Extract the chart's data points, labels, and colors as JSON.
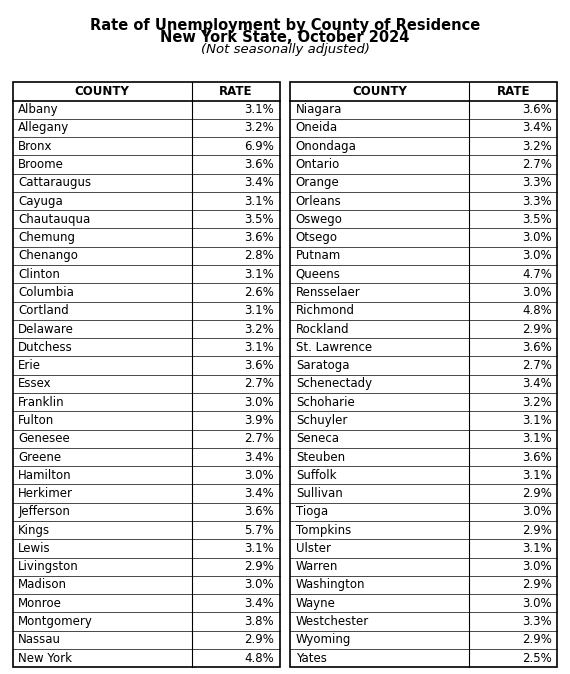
{
  "title_line1": "Rate of Unemployment by County of Residence",
  "title_line2": "New York State, October 2024",
  "title_line3": "(Not seasonally adjusted)",
  "left_counties": [
    "Albany",
    "Allegany",
    "Bronx",
    "Broome",
    "Cattaraugus",
    "Cayuga",
    "Chautauqua",
    "Chemung",
    "Chenango",
    "Clinton",
    "Columbia",
    "Cortland",
    "Delaware",
    "Dutchess",
    "Erie",
    "Essex",
    "Franklin",
    "Fulton",
    "Genesee",
    "Greene",
    "Hamilton",
    "Herkimer",
    "Jefferson",
    "Kings",
    "Lewis",
    "Livingston",
    "Madison",
    "Monroe",
    "Montgomery",
    "Nassau",
    "New York"
  ],
  "left_rates": [
    "3.1%",
    "3.2%",
    "6.9%",
    "3.6%",
    "3.4%",
    "3.1%",
    "3.5%",
    "3.6%",
    "2.8%",
    "3.1%",
    "2.6%",
    "3.1%",
    "3.2%",
    "3.1%",
    "3.6%",
    "2.7%",
    "3.0%",
    "3.9%",
    "2.7%",
    "3.4%",
    "3.0%",
    "3.4%",
    "3.6%",
    "5.7%",
    "3.1%",
    "2.9%",
    "3.0%",
    "3.4%",
    "3.8%",
    "2.9%",
    "4.8%"
  ],
  "right_counties": [
    "Niagara",
    "Oneida",
    "Onondaga",
    "Ontario",
    "Orange",
    "Orleans",
    "Oswego",
    "Otsego",
    "Putnam",
    "Queens",
    "Rensselaer",
    "Richmond",
    "Rockland",
    "St. Lawrence",
    "Saratoga",
    "Schenectady",
    "Schoharie",
    "Schuyler",
    "Seneca",
    "Steuben",
    "Suffolk",
    "Sullivan",
    "Tioga",
    "Tompkins",
    "Ulster",
    "Warren",
    "Washington",
    "Wayne",
    "Westchester",
    "Wyoming",
    "Yates"
  ],
  "right_rates": [
    "3.6%",
    "3.4%",
    "3.2%",
    "2.7%",
    "3.3%",
    "3.3%",
    "3.5%",
    "3.0%",
    "3.0%",
    "4.7%",
    "3.0%",
    "4.8%",
    "2.9%",
    "3.6%",
    "2.7%",
    "3.4%",
    "3.2%",
    "3.1%",
    "3.1%",
    "3.6%",
    "3.1%",
    "2.9%",
    "3.0%",
    "2.9%",
    "3.1%",
    "3.0%",
    "2.9%",
    "3.0%",
    "3.3%",
    "2.9%",
    "2.5%"
  ],
  "bg_color": "#ffffff",
  "header_fontsize": 8.5,
  "title_fontsize1": 10.5,
  "title_fontsize2": 10.5,
  "title_fontsize3": 9.5,
  "data_fontsize": 8.5,
  "border_color": "#000000"
}
